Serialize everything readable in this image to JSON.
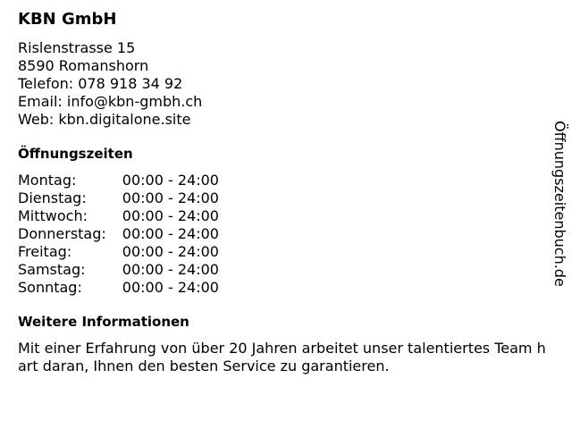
{
  "business": {
    "name": "KBN GmbH",
    "address_lines": [
      "Rislenstrasse 15",
      "8590 Romanshorn",
      "Telefon: 078 918 34 92",
      "Email: info@kbn-gmbh.ch",
      "Web: kbn.digitalone.site"
    ]
  },
  "hours": {
    "heading": "Öffnungszeiten",
    "rows": [
      {
        "day": "Montag:",
        "time": "00:00 - 24:00"
      },
      {
        "day": "Dienstag:",
        "time": "00:00 - 24:00"
      },
      {
        "day": "Mittwoch:",
        "time": "00:00 - 24:00"
      },
      {
        "day": "Donnerstag:",
        "time": "00:00 - 24:00"
      },
      {
        "day": "Freitag:",
        "time": "00:00 - 24:00"
      },
      {
        "day": "Samstag:",
        "time": "00:00 - 24:00"
      },
      {
        "day": "Sonntag:",
        "time": "00:00 - 24:00"
      }
    ]
  },
  "info": {
    "heading": "Weitere Informationen",
    "text": "Mit einer Erfahrung von über 20 Jahren arbeitet unser talentiertes Team hart daran, Ihnen den besten Service zu garantieren."
  },
  "side_label": "Öffnungszeitenbuch.de"
}
